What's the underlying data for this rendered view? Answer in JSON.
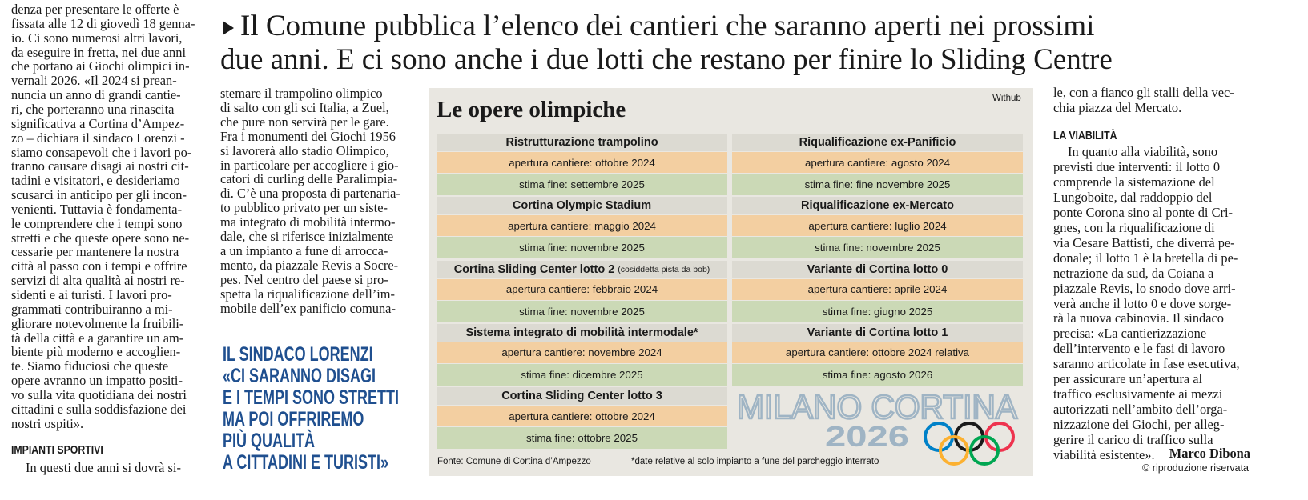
{
  "headline": [
    "Il Comune pubblica l’elenco dei cantieri che saranno aperti nei prossimi",
    "due anni. E ci sono anche i due lotti che restano per finire lo Sliding Centre"
  ],
  "left_column": {
    "lines": [
      "denza per presentare le offerte è",
      "fissata alle 12 di giovedì 18 genna-",
      "io. Ci sono numerosi altri lavori,",
      "da eseguire in fretta, nei due anni",
      "che portano ai Giochi olimpici in-",
      "vernali 2026. «Il 2024 si prean-",
      "nuncia un anno di grandi cantie-",
      "ri, che porteranno una rinascita",
      "significativa a Cortina d’Ampez-",
      "zo – dichiara il sindaco Lorenzi -",
      "siamo consapevoli che i lavori po-",
      "tranno causare disagi ai nostri cit-",
      "tadini e visitatori, e desideriamo",
      "scusarci in anticipo per gli incon-",
      "venienti. Tuttavia è fondamenta-",
      "le comprendere che i tempi sono",
      "stretti e che queste opere sono ne-",
      "cessarie per mantenere la nostra",
      "città al passo con i tempi e offrire",
      "servizi di alta qualità ai nostri re-",
      "sidenti e ai turisti. I lavori pro-",
      "grammati contribuiranno a mi-",
      "gliorare notevolmente la fruibili-",
      "tà della città e a garantire un am-",
      "biente più moderno e accoglien-",
      "te. Siamo fiduciosi che queste",
      "opere avranno un impatto positi-",
      "vo sulla vita quotidiana dei nostri",
      "cittadini e sulla soddisfazione dei",
      "nostri ospiti»."
    ],
    "subheading": "IMPIANTI SPORTIVI",
    "after": [
      "In questi due anni si dovrà si-"
    ]
  },
  "middle_column": {
    "lines": [
      "stemare il trampolino olimpico",
      "di salto con gli sci Italia, a Zuel,",
      "che pure non servirà per le gare.",
      "Fra i monumenti dei Giochi 1956",
      "si lavorerà allo stadio Olimpico,",
      "in particolare per accogliere i gio-",
      "catori di curling delle Paralimpia-",
      "di. C’è una proposta di partenaria-",
      "to pubblico privato per un siste-",
      "ma integrato di mobilità intermo-",
      "dale, che si riferisce inizialmente",
      "a un impianto a fune di arrocca-",
      "mento, da piazzale Revis a Socre-",
      "pes. Nel centro del paese si pro-",
      "spetta la riqualificazione dell’im-",
      "mobile dell’ex panificio comuna-"
    ]
  },
  "pull_quote": {
    "lines": [
      "IL SINDACO LORENZI",
      "«CI SARANNO DISAGI",
      "E I TEMPI SONO STRETTI",
      "MA POI OFFRIREMO",
      "PIÙ QUALITÀ",
      "A CITTADINI E TURISTI»"
    ]
  },
  "infographic": {
    "title": "Le opere olimpiche",
    "credit": "Withub",
    "columns": [
      [
        {
          "title": "Ristrutturazione trampolino",
          "start": "apertura cantiere: ottobre 2024",
          "end": "stima fine: settembre 2025"
        },
        {
          "title": "Cortina Olympic Stadium",
          "start": "apertura cantiere: maggio 2024",
          "end": "stima fine: novembre 2025"
        },
        {
          "title": "Cortina Sliding Center lotto 2",
          "note": "(cosiddetta pista da bob)",
          "start": "apertura cantiere: febbraio 2024",
          "end": "stima fine: novembre 2025"
        },
        {
          "title": "Sistema integrato di mobilità intermodale*",
          "start": "apertura cantiere: novembre 2024",
          "end": "stima fine: dicembre 2025"
        },
        {
          "title": "Cortina Sliding Center lotto 3",
          "start": "apertura cantiere: ottobre 2024",
          "end": "stima fine: ottobre 2025"
        }
      ],
      [
        {
          "title": "Riqualificazione ex-Panificio",
          "start": "apertura cantiere: agosto 2024",
          "end": "stima fine: fine novembre 2025"
        },
        {
          "title": "Riqualificazione ex-Mercato",
          "start": "apertura cantiere: luglio 2024",
          "end": "stima fine: novembre 2025"
        },
        {
          "title": "Variante di Cortina lotto 0",
          "start": "apertura cantiere: aprile 2024",
          "end": "stima fine: giugno 2025"
        },
        {
          "title": "Variante di Cortina lotto 1",
          "start": "apertura cantiere: ottobre 2024 relativa",
          "end": "stima fine: agosto 2026"
        }
      ]
    ],
    "logo": {
      "name": "MILANO CORTINA",
      "year": "2026"
    },
    "source": "Fonte: Comune di Cortina d’Ampezzo",
    "footnote": "*date relative al solo impianto a fune del parcheggio interrato"
  },
  "right_column": {
    "lines_before": [
      "le, con a fianco gli stalli della vec-",
      "chia piazza del Mercato."
    ],
    "subheading": "LA VIABILITÀ",
    "lines": [
      "In quanto alla viabilità, sono",
      "previsti due interventi: il lotto 0",
      "comprende la sistemazione del",
      "Lungoboite, dal raddoppio del",
      "ponte Corona sino al ponte di Cri-",
      "gnes, con la riqualificazione di",
      "via Cesare Battisti, che diverrà pe-",
      "donale; il lotto 1 è la bretella di pe-",
      "netrazione da sud, da Coiana a",
      "piazzale Revis, lo snodo dove arri-",
      "verà anche il lotto 0 e dove sorge-",
      "rà la nuova cabinovia. Il sindaco",
      "precisa: «La cantierizzazione",
      "dell’intervento e le fasi di lavoro",
      "saranno articolate in fase esecutiva,",
      "per assicurare un’apertura al",
      "traffico esclusivamente ai mezzi",
      "autorizzati nell’ambito dell’orga-",
      "nizzazione dei Giochi, per alleg-",
      "gerire il carico di traffico sulla",
      "viabilità esistente»."
    ],
    "byline": "Marco Dibona",
    "copyright": "© riproduzione riservata"
  }
}
